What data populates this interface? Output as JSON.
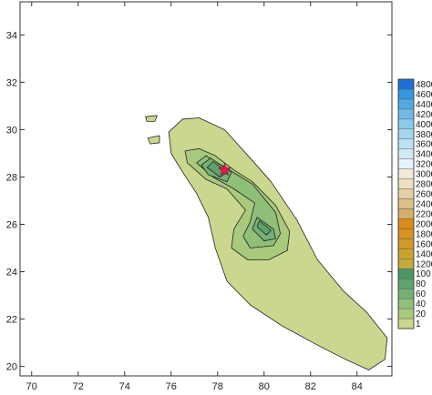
{
  "chart_data": {
    "type": "heatmap",
    "title": "",
    "xlabel": "",
    "ylabel": "",
    "xlim": [
      69.5,
      85.5
    ],
    "ylim": [
      19.6,
      35.4
    ],
    "x_ticks": [
      70,
      72,
      74,
      76,
      78,
      80,
      82,
      84
    ],
    "y_ticks": [
      20,
      22,
      24,
      26,
      28,
      30,
      32,
      34
    ],
    "colorbar": {
      "position": "right",
      "levels": [
        1,
        20,
        40,
        60,
        80,
        100,
        1200,
        1400,
        1600,
        1800,
        2000,
        2200,
        2400,
        2600,
        2800,
        3000,
        3200,
        3400,
        3600,
        3800,
        4000,
        4200,
        4400,
        4600,
        4800
      ],
      "colors": [
        "#c9d88e",
        "#a9c97c",
        "#8fbf79",
        "#74b173",
        "#5ea36b",
        "#4c9664",
        "#c3a93a",
        "#caa22f",
        "#d19a27",
        "#d8921e",
        "#dd8a17",
        "#d2b06a",
        "#dcc08a",
        "#e5d0a6",
        "#ede0c4",
        "#f2ead6",
        "#e6f3f8",
        "#d2eaf5",
        "#bce1f2",
        "#a4d6ee",
        "#8ccaea",
        "#6fbbe6",
        "#52aae2",
        "#3595de",
        "#1e6fd8"
      ]
    },
    "marker": {
      "shape": "star",
      "x": 78.3,
      "y": 28.3,
      "color": "#e8174a"
    },
    "grid": false,
    "legend": "none"
  }
}
